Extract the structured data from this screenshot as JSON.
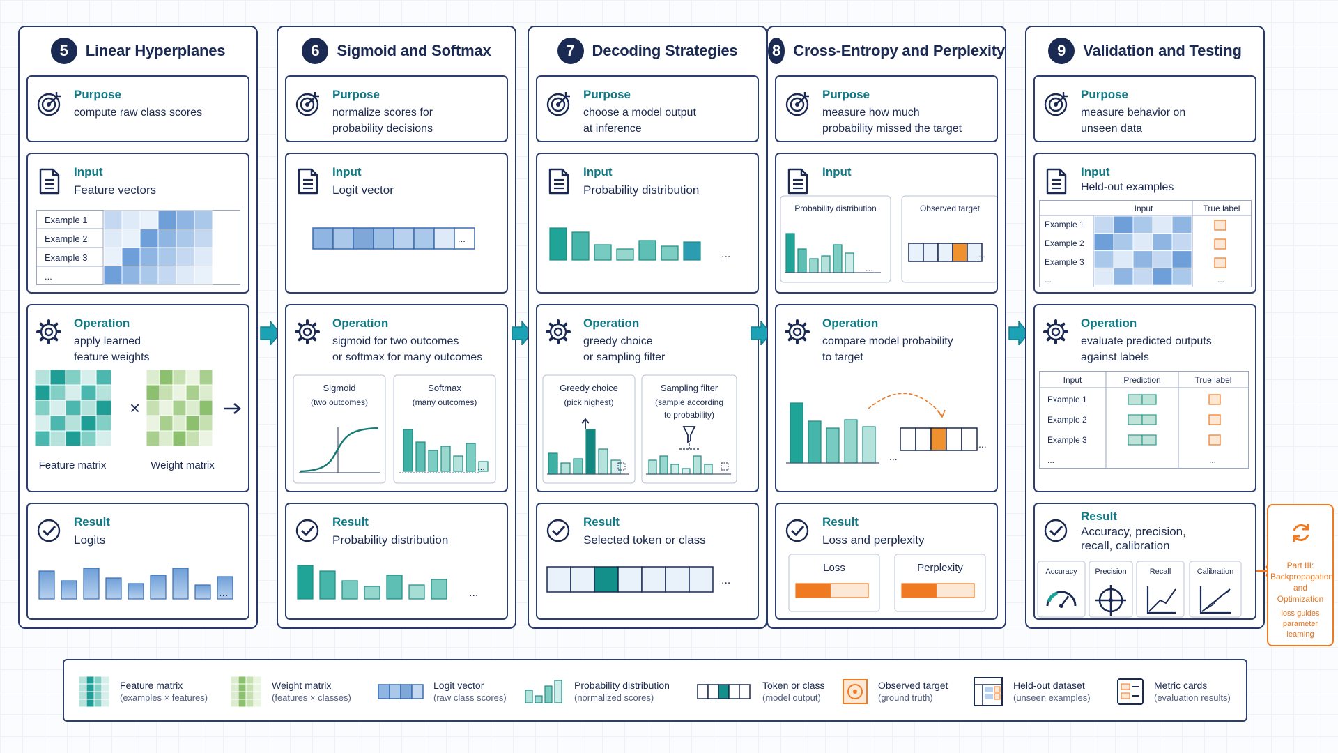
{
  "columns": [
    {
      "number": "5",
      "title": "Linear Hyperplanes",
      "purpose": {
        "label": "Purpose",
        "text": "compute raw class scores"
      },
      "input": {
        "label": "Input",
        "text": "Feature vectors",
        "rows": [
          "Example 1",
          "Example 2",
          "Example 3",
          "..."
        ]
      },
      "operation": {
        "label": "Operation",
        "text": "apply learned\nfeature weights",
        "times": "×",
        "left_caption": "Feature matrix",
        "right_caption": "Weight matrix"
      },
      "result": {
        "label": "Result",
        "text": "Logits",
        "ellipsis": "..."
      }
    },
    {
      "number": "6",
      "title": "Sigmoid and Softmax",
      "purpose": {
        "label": "Purpose",
        "text": "normalize scores for\nprobability decisions"
      },
      "input": {
        "label": "Input",
        "text": "Logit vector",
        "ellipsis": "..."
      },
      "operation": {
        "label": "Operation",
        "text": "sigmoid for two outcomes\nor softmax for many outcomes",
        "left_panel": {
          "title": "Sigmoid",
          "subtitle": "(two outcomes)"
        },
        "right_panel": {
          "title": "Softmax",
          "subtitle": "(many outcomes)"
        }
      },
      "result": {
        "label": "Result",
        "text": "Probability distribution",
        "ellipsis": "..."
      }
    },
    {
      "number": "7",
      "title": "Decoding Strategies",
      "purpose": {
        "label": "Purpose",
        "text": "choose a model output\nat inference"
      },
      "input": {
        "label": "Input",
        "text": "Probability distribution",
        "ellipsis": "..."
      },
      "operation": {
        "label": "Operation",
        "text": "greedy choice\nor sampling filter",
        "left_panel": {
          "title": "Greedy choice",
          "subtitle": "(pick highest)"
        },
        "right_panel": {
          "title": "Sampling filter",
          "subtitle": "(sample according\nto probability)"
        }
      },
      "result": {
        "label": "Result",
        "text": "Selected token or class",
        "ellipsis": "..."
      }
    },
    {
      "number": "8",
      "title": "Cross-Entropy and Perplexity",
      "purpose": {
        "label": "Purpose",
        "text": "measure how much\nprobability missed the target"
      },
      "input": {
        "label": "Input",
        "left_panel": "Probability distribution",
        "right_panel": "Observed target",
        "ellipsis": "..."
      },
      "operation": {
        "label": "Operation",
        "text": "compare model probability\nto target",
        "ellipsis": "..."
      },
      "result": {
        "label": "Result",
        "text": "Loss and perplexity",
        "metric_1": "Loss",
        "metric_2": "Perplexity",
        "level_1": 0.48,
        "level_2": 0.48
      }
    },
    {
      "number": "9",
      "title": "Validation and Testing",
      "purpose": {
        "label": "Purpose",
        "text": "measure behavior on\nunseen data"
      },
      "input": {
        "label": "Input",
        "text": "Held-out examples",
        "col_input": "Input",
        "col_true": "True label",
        "rows": [
          "Example 1",
          "Example 2",
          "Example 3",
          "..."
        ],
        "ellipsis": "..."
      },
      "operation": {
        "label": "Operation",
        "text": "evaluate predicted outputs\nagainst labels",
        "col_input": "Input",
        "col_prediction": "Prediction",
        "col_true": "True label",
        "rows": [
          "Example 1",
          "Example 2",
          "Example 3",
          "..."
        ],
        "ellipsis": "..."
      },
      "result": {
        "label": "Result",
        "text": "Accuracy, precision,\nrecall, calibration",
        "metrics": [
          "Accuracy",
          "Precision",
          "Recall",
          "Calibration"
        ]
      }
    }
  ],
  "side_note": {
    "title": "Part III:\nBackpropagation\nand Optimization",
    "note": "loss guides\nparameter learning"
  },
  "legend": [
    {
      "name": "Feature matrix",
      "sub": "(examples × features)",
      "icon": "feature-matrix"
    },
    {
      "name": "Weight matrix",
      "sub": "(features × classes)",
      "icon": "weight-matrix"
    },
    {
      "name": "Logit vector",
      "sub": "(raw class scores)",
      "icon": "logit-vector"
    },
    {
      "name": "Probability distribution",
      "sub": "(normalized scores)",
      "icon": "probability-bars"
    },
    {
      "name": "Token or class",
      "sub": "(model output)",
      "icon": "token-strip"
    },
    {
      "name": "Observed target",
      "sub": "(ground truth)",
      "icon": "target"
    },
    {
      "name": "Held-out dataset",
      "sub": "(unseen examples)",
      "icon": "dataset"
    },
    {
      "name": "Metric cards",
      "sub": "(evaluation results)",
      "icon": "metric-cards"
    }
  ],
  "colors": {
    "navy": "#1b2a52",
    "teal": "#1ba39a",
    "blue": "#7fa8d8",
    "green": "#a9cf8e",
    "orange": "#f07a22"
  }
}
